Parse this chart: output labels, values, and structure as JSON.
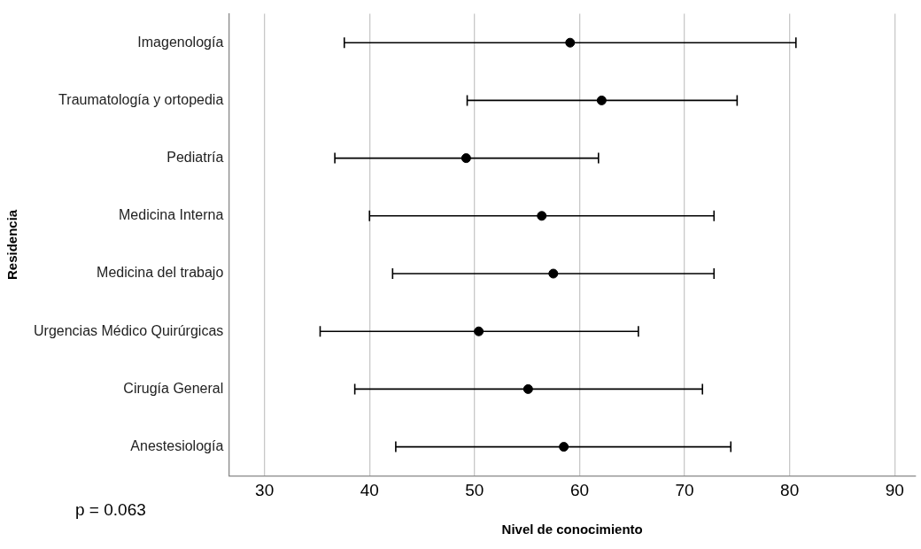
{
  "chart_data": {
    "type": "scatter",
    "orientation": "horizontal",
    "categories": [
      "Imagenología",
      "Traumatología y ortopedia",
      "Pediatría",
      "Medicina Interna",
      "Medicina del trabajo",
      "Urgencias Médico Quirúrgicas",
      "Cirugía General",
      "Anestesiología"
    ],
    "series": [
      {
        "color": "#000000",
        "values": [
          59.1,
          62.1,
          49.2,
          56.4,
          57.5,
          50.4,
          55.1,
          58.5
        ],
        "errors": [
          [
            37.6,
            80.6
          ],
          [
            49.3,
            75.0
          ],
          [
            36.7,
            61.8
          ],
          [
            40.0,
            72.8
          ],
          [
            42.2,
            72.8
          ],
          [
            35.3,
            65.6
          ],
          [
            38.6,
            71.7
          ],
          [
            42.5,
            74.4
          ]
        ]
      }
    ],
    "xlabel": "Nivel de conocimiento",
    "ylabel": "Residencia",
    "xlim": [
      26.6,
      92
    ],
    "xticks": [
      30,
      40,
      50,
      60,
      70,
      80,
      90
    ],
    "grid": "x",
    "marker": "circle",
    "legend": false,
    "annotations": [
      "p = 0.063"
    ]
  }
}
